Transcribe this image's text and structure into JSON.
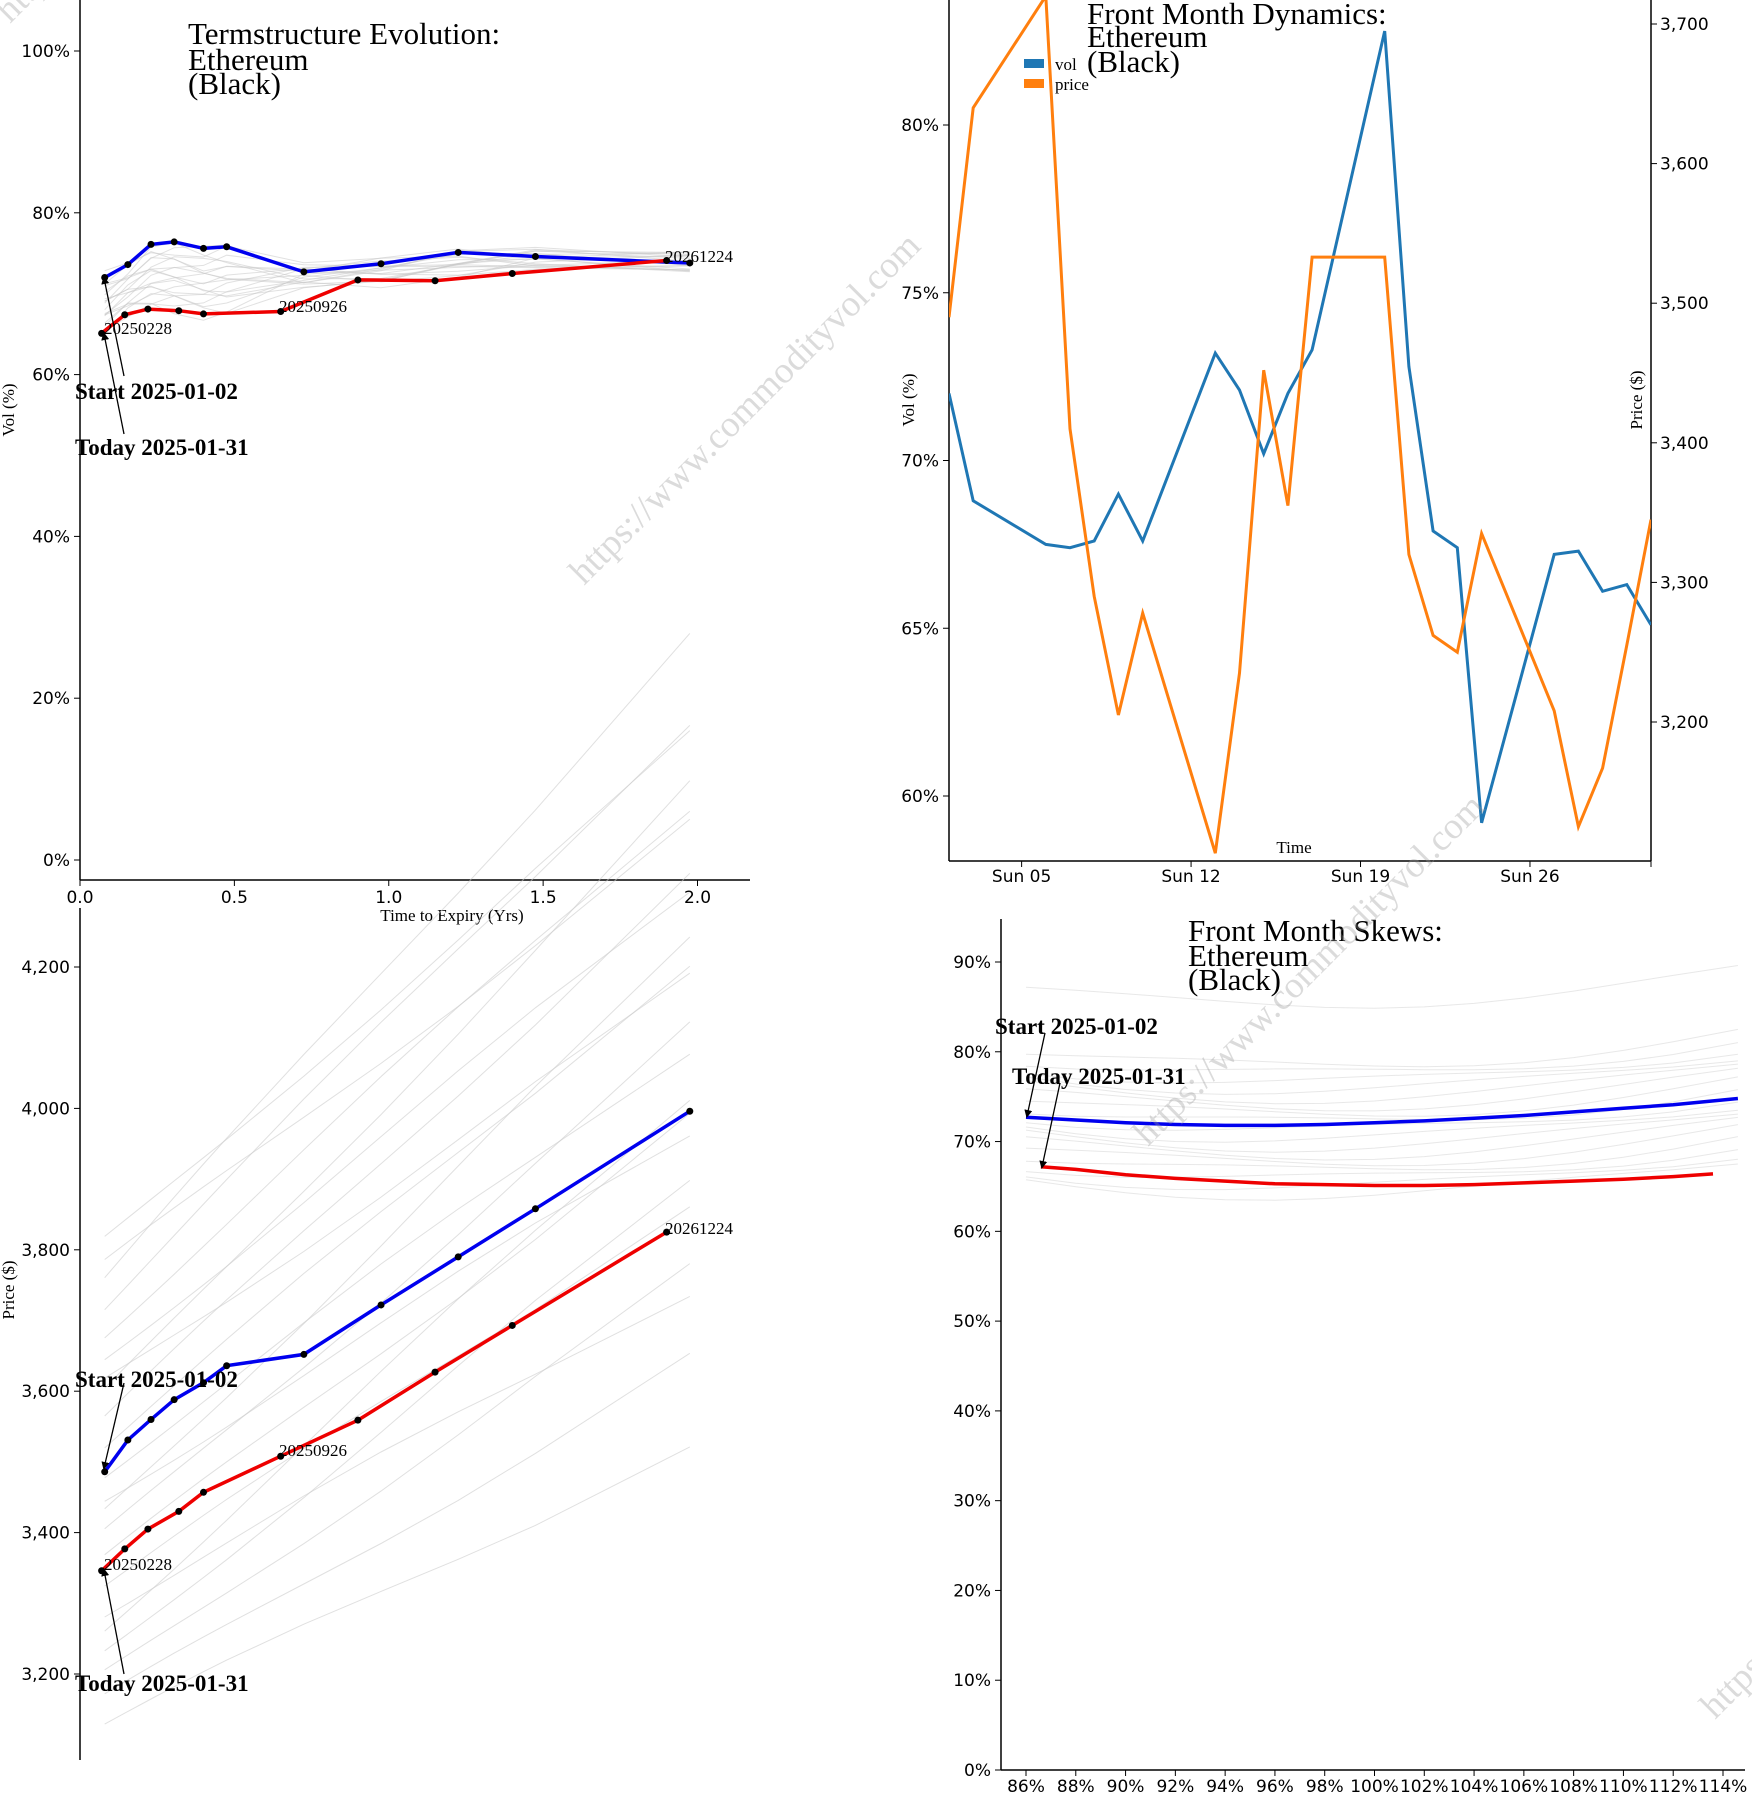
{
  "watermark": "https://www.commodityvol.com",
  "chart_data": [
    {
      "id": "term",
      "type": "line",
      "title": [
        "Termstructure Evolution:",
        "Ethereum",
        "(Black)"
      ],
      "xlabel": "Time to Expiry (Yrs)",
      "ylabel": "Vol (%)",
      "xlim": [
        0,
        2.17
      ],
      "ylim": [
        0,
        106
      ],
      "x_ticks": [
        0,
        0.5,
        1,
        1.5,
        2
      ],
      "x_tick_labels": [
        "0.0",
        "0.5",
        "1.0",
        "1.5",
        "2.0"
      ],
      "y_ticks": [
        0,
        20,
        40,
        60,
        80,
        100
      ],
      "y_tick_labels": [
        "0%",
        "20%",
        "40%",
        "60%",
        "80%",
        "100%"
      ],
      "series": [
        {
          "name": "Start 2025-01-02",
          "color": "#0000ee",
          "x": [
            0.08,
            0.155,
            0.23,
            0.305,
            0.4,
            0.475,
            0.725,
            0.975,
            1.225,
            1.475,
            1.975
          ],
          "y": [
            72,
            73.6,
            76.1,
            76.4,
            75.6,
            75.8,
            72.7,
            73.7,
            75.1,
            74.6,
            73.8
          ]
        },
        {
          "name": "Today 2025-01-31",
          "color": "#ee0000",
          "x": [
            0.07,
            0.145,
            0.22,
            0.32,
            0.4,
            0.65,
            0.9,
            1.15,
            1.4,
            1.9
          ],
          "y": [
            65.1,
            67.4,
            68.1,
            67.9,
            67.5,
            67.8,
            71.7,
            71.6,
            72.5,
            74.1
          ]
        }
      ],
      "labels": {
        "start": "Start 2025-01-02",
        "today": "Today 2025-01-31",
        "exp1": "20250228",
        "exp2": "20250926",
        "exp3": "20261224"
      }
    },
    {
      "id": "dyn",
      "type": "line",
      "title": [
        "Front Month Dynamics:",
        "Ethereum",
        "(Black)"
      ],
      "xlabel": "Time",
      "ylabel": "Vol (%)",
      "ylabel_right": "Price ($)",
      "x": [
        "Jan 02",
        "Jan 03",
        "Jan 06",
        "Jan 07",
        "Jan 08",
        "Jan 09",
        "Jan 10",
        "Jan 13",
        "Jan 14",
        "Jan 15",
        "Jan 16",
        "Jan 17",
        "Jan 20",
        "Jan 21",
        "Jan 22",
        "Jan 23",
        "Jan 24",
        "Jan 27",
        "Jan 28",
        "Jan 29",
        "Jan 30",
        "Jan 31"
      ],
      "x_ticks": [
        "Sun 05",
        "Sun 12",
        "Sun 19",
        "Sun 26"
      ],
      "y_ticks": [
        60,
        65,
        70,
        75,
        80
      ],
      "y_tick_labels": [
        "60%",
        "65%",
        "70%",
        "75%",
        "80%"
      ],
      "y_right_ticks": [
        3200,
        3300,
        3400,
        3500,
        3600,
        3700
      ],
      "y_right_tick_labels": [
        "3,200",
        "3,300",
        "3,400",
        "3,500",
        "3,600",
        "3,700"
      ],
      "legend": [
        "vol",
        "price"
      ],
      "series": [
        {
          "name": "vol",
          "color": "#1f77b4",
          "axis": "left",
          "points": [
            [
              0,
              72
            ],
            [
              1,
              68.8
            ],
            [
              4,
              67.5
            ],
            [
              5,
              67.4
            ],
            [
              6,
              67.6
            ],
            [
              7,
              69
            ],
            [
              8,
              67.6
            ],
            [
              11,
              73.2
            ],
            [
              12,
              72.1
            ],
            [
              13,
              70.2
            ],
            [
              14,
              72
            ],
            [
              15,
              73.3
            ],
            [
              18,
              82.8
            ],
            [
              19,
              72.8
            ],
            [
              20,
              67.9
            ],
            [
              21,
              67.4
            ],
            [
              22,
              59.2
            ],
            [
              25,
              67.2
            ],
            [
              26,
              67.3
            ],
            [
              27,
              66.1
            ],
            [
              28,
              66.3
            ],
            [
              29,
              65.1
            ]
          ]
        },
        {
          "name": "price",
          "color": "#ff7f0e",
          "axis": "right",
          "points": [
            [
              0,
              3490
            ],
            [
              1,
              3640
            ],
            [
              4,
              3720
            ],
            [
              5,
              3410
            ],
            [
              6,
              3290
            ],
            [
              7,
              3205
            ],
            [
              8,
              3278
            ],
            [
              11,
              3106
            ],
            [
              12,
              3235
            ],
            [
              13,
              3452
            ],
            [
              14,
              3355
            ],
            [
              15,
              3533
            ],
            [
              18,
              3533
            ],
            [
              19,
              3320
            ],
            [
              20,
              3262
            ],
            [
              21,
              3250
            ],
            [
              22,
              3335
            ],
            [
              25,
              3208
            ],
            [
              26,
              3125
            ],
            [
              27,
              3167
            ],
            [
              28,
              3255
            ],
            [
              29,
              3345
            ]
          ]
        }
      ]
    },
    {
      "id": "price",
      "type": "line",
      "xlabel": "",
      "ylabel": "Price ($)",
      "ylim": [
        3090,
        4320
      ],
      "y_ticks": [
        3200,
        3400,
        3600,
        3800,
        4000,
        4200
      ],
      "y_tick_labels": [
        "3,200",
        "3,400",
        "3,600",
        "3,800",
        "4,000",
        "4,200"
      ],
      "series": [
        {
          "name": "Start 2025-01-02",
          "color": "#0000ee",
          "x": [
            0.08,
            0.155,
            0.23,
            0.305,
            0.4,
            0.475,
            0.725,
            0.975,
            1.225,
            1.475,
            1.975
          ],
          "y": [
            3486,
            3531,
            3560,
            3588,
            3612,
            3636,
            3652,
            3722,
            3790,
            3858,
            3996
          ]
        },
        {
          "name": "Today 2025-01-31",
          "color": "#ee0000",
          "x": [
            0.07,
            0.145,
            0.22,
            0.32,
            0.4,
            0.65,
            0.9,
            1.15,
            1.4,
            1.9
          ],
          "y": [
            3346,
            3377,
            3405,
            3430,
            3457,
            3508,
            3559,
            3627,
            3693,
            3825
          ]
        }
      ],
      "labels": {
        "start": "Start 2025-01-02",
        "today": "Today 2025-01-31",
        "exp1": "20250228",
        "exp2": "20250926",
        "exp3": "20261224"
      }
    },
    {
      "id": "skew",
      "type": "line",
      "title": [
        "Front Month Skews:",
        "Ethereum",
        "(Black)"
      ],
      "xlabel": "",
      "ylabel": "",
      "xlim": [
        85,
        114.6
      ],
      "ylim": [
        0,
        94
      ],
      "x_ticks": [
        86,
        88,
        90,
        92,
        94,
        96,
        98,
        100,
        102,
        104,
        106,
        108,
        110,
        112,
        114
      ],
      "x_tick_labels": [
        "86%",
        "88%",
        "90%",
        "92%",
        "94%",
        "96%",
        "98%",
        "100%",
        "102%",
        "104%",
        "106%",
        "108%",
        "110%",
        "112%",
        "114%"
      ],
      "y_ticks": [
        0,
        10,
        20,
        30,
        40,
        50,
        60,
        70,
        80,
        90
      ],
      "y_tick_labels": [
        "0%",
        "10%",
        "20%",
        "30%",
        "40%",
        "50%",
        "60%",
        "70%",
        "80%",
        "90%"
      ],
      "series": [
        {
          "name": "Start 2025-01-02",
          "color": "#0000ee",
          "x": [
            86,
            88,
            90,
            92,
            94,
            96,
            98,
            100,
            102,
            104,
            106,
            108,
            110,
            112,
            114.6
          ],
          "y": [
            72.7,
            72.4,
            72.1,
            71.9,
            71.8,
            71.8,
            71.9,
            72.1,
            72.3,
            72.6,
            72.9,
            73.3,
            73.7,
            74.1,
            74.8
          ]
        },
        {
          "name": "Today 2025-01-31",
          "color": "#ee0000",
          "x": [
            86.6,
            88,
            90,
            92,
            94,
            96,
            98,
            100,
            102,
            104,
            106,
            108,
            110,
            112,
            113.6
          ],
          "y": [
            67.2,
            66.9,
            66.3,
            65.9,
            65.6,
            65.3,
            65.2,
            65.1,
            65.1,
            65.2,
            65.4,
            65.6,
            65.8,
            66.1,
            66.4
          ]
        }
      ],
      "labels": {
        "start": "Start 2025-01-02",
        "today": "Today 2025-01-31"
      }
    }
  ]
}
